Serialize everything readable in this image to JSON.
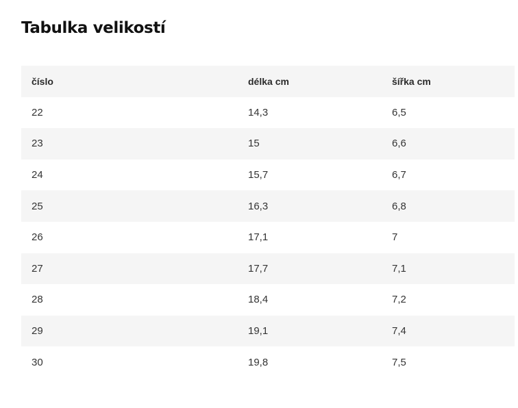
{
  "page": {
    "title": "Tabulka velikostí"
  },
  "table": {
    "headers": [
      "číslo",
      "délka cm",
      "šířka cm"
    ],
    "rows": [
      [
        "22",
        "14,3",
        "6,5"
      ],
      [
        "23",
        "15",
        "6,6"
      ],
      [
        "24",
        "15,7",
        "6,7"
      ],
      [
        "25",
        "16,3",
        "6,8"
      ],
      [
        "26",
        "17,1",
        "7"
      ],
      [
        "27",
        "17,7",
        "7,1"
      ],
      [
        "28",
        "18,4",
        "7,2"
      ],
      [
        "29",
        "19,1",
        "7,4"
      ],
      [
        "30",
        "19,8",
        "7,5"
      ]
    ]
  },
  "colors": {
    "stripe": "#f5f5f5",
    "text": "#222222"
  }
}
